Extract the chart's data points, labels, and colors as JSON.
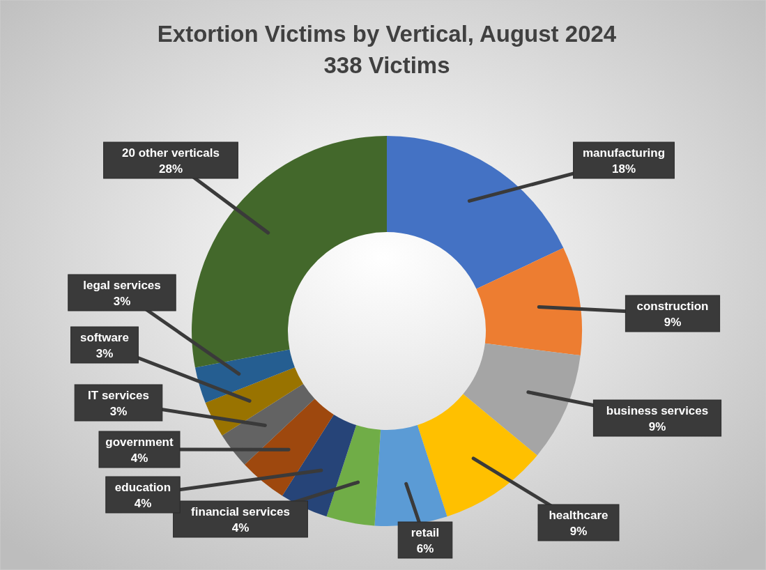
{
  "chart_data": {
    "type": "donut",
    "title": "Extortion Victims by Vertical, August 2024",
    "subtitle": "338 Victims",
    "categories": [
      "manufacturing",
      "construction",
      "business services",
      "healthcare",
      "retail",
      "financial services",
      "education",
      "government",
      "IT services",
      "software",
      "legal services",
      "20 other verticals"
    ],
    "values": [
      18,
      9,
      9,
      9,
      6,
      4,
      4,
      4,
      3,
      3,
      3,
      28
    ],
    "colors": [
      "#4472c4",
      "#ed7d31",
      "#a5a5a5",
      "#ffc000",
      "#5b9bd5",
      "#70ad47",
      "#264478",
      "#9e480e",
      "#636363",
      "#997300",
      "#255e91",
      "#43682b"
    ],
    "value_labels": [
      "18%",
      "9%",
      "9%",
      "9%",
      "6%",
      "4%",
      "4%",
      "4%",
      "3%",
      "3%",
      "3%",
      "28%"
    ]
  }
}
